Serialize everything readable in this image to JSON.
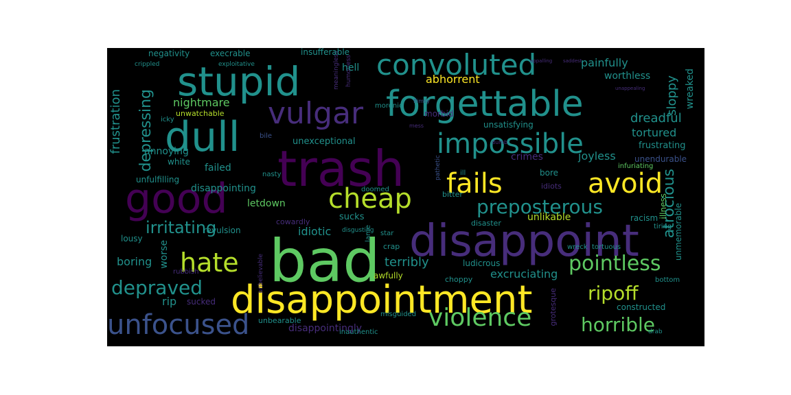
{
  "palette": {
    "background": "#000000",
    "yellow": "#fde725",
    "green": "#5ec962",
    "lime": "#b5de2b",
    "teal": "#21918c",
    "blue": "#3b528b",
    "purple": "#440154",
    "violet": "#472d7b",
    "cyan": "#2c728e"
  },
  "words": {
    "bad": "bad",
    "disappointment": "disappointment",
    "trash": "trash",
    "disappoint": "disappoint",
    "good": "good",
    "forgettable": "forgettable",
    "stupid": "stupid",
    "dull": "dull",
    "convoluted": "convoluted",
    "vulgar": "vulgar",
    "impossible": "impossible",
    "fails": "fails",
    "avoid": "avoid",
    "cheap": "cheap",
    "unfocused": "unfocused",
    "violence": "violence",
    "hate": "hate",
    "preposterous": "preposterous",
    "pointless": "pointless",
    "horrible": "horrible",
    "ripoff": "ripoff",
    "depraved": "depraved",
    "irritating": "irritating",
    "depressing": "depressing",
    "atrocious": "atrocious",
    "frustration": "frustration",
    "painfully": "painfully",
    "dreadful": "dreadful",
    "tortured": "tortured",
    "sloppy": "sloppy",
    "abhorrent": "abhorrent",
    "nightmare": "nightmare",
    "disappointing": "disappointing",
    "disappointingly": "disappointingly",
    "letdown": "letdown",
    "excruciating": "excruciating",
    "terribly": "terribly",
    "unlikable": "unlikable",
    "boring": "boring",
    "worse": "worse",
    "hell": "hell",
    "unexceptional": "unexceptional",
    "failed": "failed",
    "joyless": "joyless",
    "crimes": "crimes",
    "idiotic": "idiotic",
    "sucks": "sucks",
    "constructed": "constructed",
    "unbearable": "unbearable",
    "ludicrous": "ludicrous",
    "rip": "rip",
    "sucked": "sucked",
    "lousy": "lousy",
    "revulsion": "revulsion",
    "annoying": "annoying",
    "negativity": "negativity",
    "execrable": "execrable",
    "insufferable": "insufferable",
    "worthless": "worthless",
    "wreaked": "wreaked",
    "unmemorable": "unmemorable",
    "racism": "racism",
    "unendurable": "unendurable",
    "frustrating": "frustrating",
    "infuriating": "infuriating",
    "unsatisfying": "unsatisfying",
    "unfulfilling": "unfulfilling",
    "unwatchable": "unwatchable",
    "morbid": "morbid",
    "white": "white",
    "illness": "illness",
    "bore": "bore",
    "idiots": "idiots",
    "disaster": "disaster",
    "bitter": "bitter",
    "cowardly": "cowardly",
    "awfully": "awfully",
    "crap": "crap",
    "misguided": "misguided",
    "inauthentic": "inauthentic",
    "icky": "icky",
    "doomed": "doomed",
    "nasty": "nasty",
    "bile": "bile",
    "ill": "ill",
    "crippled": "crippled",
    "exploitative": "exploitative",
    "moronic": "moronic",
    "pathetic": "pathetic",
    "disgusting": "disgusting",
    "choppy": "choppy",
    "wreck": "wreck",
    "tortuous": "tortuous",
    "tiring": "tiring",
    "bottom": "bottom",
    "grotesque": "grotesque",
    "rubbish": "rubbish",
    "lame": "lame",
    "star": "star",
    "drab": "drab",
    "appalling": "appalling",
    "saddest": "saddest",
    "unappealing": "unappealing",
    "meaningless": "meaningless",
    "humorless": "humorless",
    "unbelievable": "unbelievable",
    "mess": "mess",
    "dumb": "dumb",
    "flimsy": "flimsy"
  }
}
